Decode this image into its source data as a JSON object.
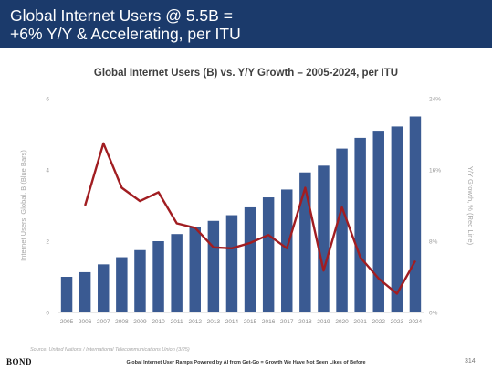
{
  "header": {
    "title": "Global Internet Users @ 5.5B =\n+6% Y/Y & Accelerating, per ITU",
    "background": "#1b3a6b"
  },
  "chart_data": {
    "type": "bar",
    "title": "Global Internet Users (B) vs. Y/Y Growth – 2005-2024, per ITU",
    "categories": [
      "2005",
      "2006",
      "2007",
      "2008",
      "2009",
      "2010",
      "2011",
      "2012",
      "2013",
      "2014",
      "2015",
      "2016",
      "2017",
      "2018",
      "2019",
      "2020",
      "2021",
      "2022",
      "2023",
      "2024"
    ],
    "series": [
      {
        "name": "Internet Users, Global, B (Blue Bars)",
        "type": "bar",
        "axis": "left",
        "color": "#3a5a92",
        "values": [
          1.0,
          1.13,
          1.35,
          1.55,
          1.75,
          2.0,
          2.2,
          2.4,
          2.57,
          2.73,
          2.95,
          3.23,
          3.45,
          3.93,
          4.12,
          4.6,
          4.9,
          5.1,
          5.22,
          5.5
        ]
      },
      {
        "name": "Y/Y Growth, % (Red Line)",
        "type": "line",
        "axis": "right",
        "color": "#a11d21",
        "values": [
          null,
          12.0,
          19.0,
          14.0,
          12.5,
          13.5,
          10.0,
          9.5,
          7.3,
          7.2,
          7.8,
          8.7,
          7.2,
          14.0,
          4.7,
          11.8,
          6.2,
          3.8,
          2.1,
          5.8
        ]
      }
    ],
    "ylabel": "Internet Users, Global, B (Blue Bars)",
    "y2label": "Y/Y Growth, % (Red Line)",
    "ylim": [
      0,
      6
    ],
    "y2lim": [
      0,
      24
    ],
    "yticks": [
      "0",
      "2",
      "4",
      "6"
    ],
    "y2ticks": [
      "0%",
      "8%",
      "16%",
      "24%"
    ],
    "grid": false
  },
  "footer": {
    "source": "Source: United Nations / International Telecommunications Union (3/25)",
    "logo": "BOND",
    "text": "Global Internet User Ramps Powered by AI from Get-Go = Growth We Have Not Seen Likes of Before",
    "page": "314"
  }
}
